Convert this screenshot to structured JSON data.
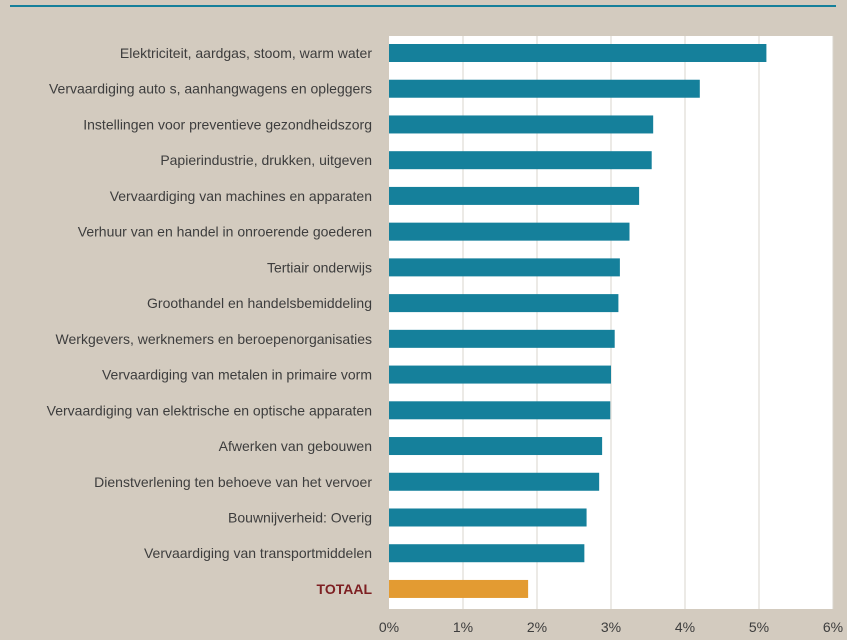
{
  "chart_data": {
    "type": "bar",
    "orientation": "horizontal",
    "categories": [
      "Elektriciteit, aardgas, stoom, warm water",
      "Vervaardiging auto s, aanhangwagens en opleggers",
      "Instellingen voor preventieve gezondheidszorg",
      "Papierindustrie, drukken, uitgeven",
      "Vervaardiging van machines en apparaten",
      "Verhuur van en handel in onroerende goederen",
      "Tertiair onderwijs",
      "Groothandel en handelsbemiddeling",
      "Werkgevers, werknemers en beroepenorganisaties",
      "Vervaardiging van metalen in primaire vorm",
      "Vervaardiging van elektrische en optische apparaten",
      "Afwerken van gebouwen",
      "Dienstverlening ten behoeve van het vervoer",
      "Bouwnijverheid: Overig",
      "Vervaardiging van transportmiddelen",
      "TOTAAL"
    ],
    "values": [
      5.1,
      4.2,
      3.57,
      3.55,
      3.38,
      3.25,
      3.12,
      3.1,
      3.05,
      3.0,
      2.99,
      2.88,
      2.84,
      2.67,
      2.64,
      1.88
    ],
    "highlight_category": "TOTAAL",
    "xlim": [
      0,
      6
    ],
    "xticks": [
      0,
      1,
      2,
      3,
      4,
      5,
      6
    ],
    "xtick_labels": [
      "0%",
      "1%",
      "2%",
      "3%",
      "4%",
      "5%",
      "6%"
    ],
    "grid": "vertical",
    "title": "",
    "xlabel": "",
    "ylabel": ""
  },
  "colors": {
    "background": "#d3cbbf",
    "plot_background": "#ffffff",
    "bar": "#15809b",
    "highlight_bar": "#e39b32",
    "highlight_label": "#7d1f22",
    "gridline": "#d9d4cc",
    "rule": "#15809b"
  }
}
